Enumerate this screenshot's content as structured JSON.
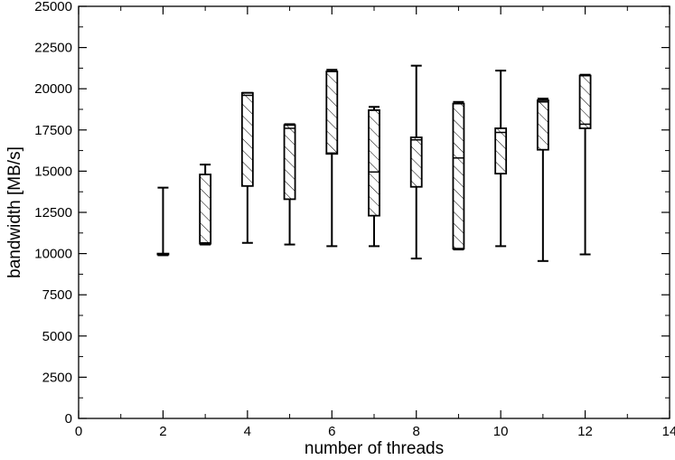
{
  "chart_data": {
    "type": "box",
    "xlabel": "number of threads",
    "ylabel": "bandwidth [MB/s]",
    "xlim": [
      0,
      14
    ],
    "ylim": [
      0,
      25000
    ],
    "x_major_ticks": [
      0,
      2,
      4,
      6,
      8,
      10,
      12,
      14
    ],
    "x_minor_ticks": [
      1,
      3,
      5,
      7,
      9,
      11,
      13
    ],
    "y_major_ticks": [
      0,
      2500,
      5000,
      7500,
      10000,
      12500,
      15000,
      17500,
      20000,
      22500,
      25000
    ],
    "grid": false,
    "box_fill": "diagonal-hatch",
    "boxes": [
      {
        "threads": 2,
        "min": 9900,
        "q1": 9950,
        "median": 9980,
        "q3": 10000,
        "max": 14000
      },
      {
        "threads": 3,
        "min": 10550,
        "q1": 10600,
        "median": 10650,
        "q3": 14800,
        "max": 15400
      },
      {
        "threads": 4,
        "min": 10650,
        "q1": 14100,
        "median": 19600,
        "q3": 19750,
        "max": 19750
      },
      {
        "threads": 5,
        "min": 10550,
        "q1": 13300,
        "median": 17600,
        "q3": 17800,
        "max": 17850
      },
      {
        "threads": 6,
        "min": 10450,
        "q1": 16050,
        "median": 16100,
        "q3": 21050,
        "max": 21150
      },
      {
        "threads": 7,
        "min": 10450,
        "q1": 12300,
        "median": 14950,
        "q3": 18700,
        "max": 18900
      },
      {
        "threads": 8,
        "min": 9700,
        "q1": 14050,
        "median": 16900,
        "q3": 17050,
        "max": 21400
      },
      {
        "threads": 9,
        "min": 10250,
        "q1": 10300,
        "median": 15800,
        "q3": 19100,
        "max": 19200
      },
      {
        "threads": 10,
        "min": 10450,
        "q1": 14850,
        "median": 17350,
        "q3": 17600,
        "max": 21100
      },
      {
        "threads": 11,
        "min": 9550,
        "q1": 16300,
        "median": 19200,
        "q3": 19300,
        "max": 19400
      },
      {
        "threads": 12,
        "min": 9950,
        "q1": 17600,
        "median": 17850,
        "q3": 20800,
        "max": 20850
      }
    ]
  }
}
